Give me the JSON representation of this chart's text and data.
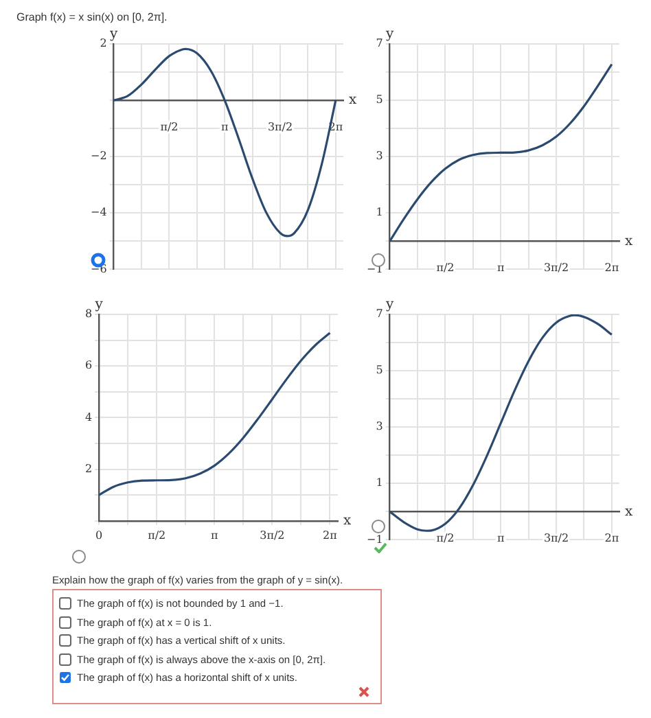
{
  "chart_data": [
    {
      "type": "line",
      "title": "Graph f(x) = x sin(x) on [0, 2π].",
      "xlabel": "x",
      "ylabel": "y",
      "xlim": [
        0,
        6.5
      ],
      "ylim": [
        -6,
        2
      ],
      "xticks": [
        {
          "value": 0.785,
          "label": null
        },
        {
          "value": 1.571,
          "label": "π/2"
        },
        {
          "value": 2.356,
          "label": null
        },
        {
          "value": 3.142,
          "label": "π"
        },
        {
          "value": 3.927,
          "label": null
        },
        {
          "value": 4.712,
          "label": "3π/2"
        },
        {
          "value": 5.498,
          "label": null
        },
        {
          "value": 6.283,
          "label": "2π"
        }
      ],
      "yticks": [
        -6,
        {
          "value": -5,
          "label": null
        },
        -4,
        {
          "value": -3,
          "label": null
        },
        -2,
        {
          "value": -1,
          "label": null
        },
        {
          "value": 0,
          "label": null
        },
        {
          "value": 1,
          "label": null
        },
        2
      ],
      "grid": true,
      "legend": false,
      "marker": "none",
      "series": [
        {
          "color": "#2b4a6f",
          "x": [
            0,
            0.393,
            0.785,
            1.178,
            1.571,
            1.963,
            2.03,
            2.356,
            2.749,
            3.142,
            3.534,
            3.927,
            4.32,
            4.712,
            4.91,
            5.105,
            5.498,
            5.89,
            6.283
          ],
          "values": [
            0,
            0.15,
            0.56,
            1.09,
            1.57,
            1.81,
            1.82,
            1.67,
            1.05,
            0,
            -1.35,
            -2.78,
            -3.99,
            -4.71,
            -4.82,
            -4.72,
            -3.89,
            -2.26,
            0
          ]
        }
      ],
      "annotations": [
        "Explain how the graph of f(x) varies from the graph of  y = sin(x).",
        "The graph of f(x) is not bounded by 1 and −1.",
        "The graph of f(x) at x = 0 is 1.",
        "The graph of f(x) has a vertical shift of x units.",
        "The graph of f(x) is always above the x-axis on [0, 2π].",
        "The graph of f(x) has a horizontal shift of x units."
      ]
    },
    {
      "type": "line",
      "xlabel": "x",
      "ylabel": "y",
      "xlim": [
        0,
        6.5
      ],
      "ylim": [
        -1,
        7
      ],
      "xticks": [
        {
          "value": 0.785,
          "label": null
        },
        {
          "value": 1.571,
          "label": "π/2"
        },
        {
          "value": 2.356,
          "label": null
        },
        {
          "value": 3.142,
          "label": "π"
        },
        {
          "value": 3.927,
          "label": null
        },
        {
          "value": 4.712,
          "label": "3π/2"
        },
        {
          "value": 5.498,
          "label": null
        },
        {
          "value": 6.283,
          "label": "2π"
        }
      ],
      "yticks": [
        -1,
        {
          "value": 0,
          "label": null
        },
        1,
        {
          "value": 2,
          "label": null
        },
        3,
        {
          "value": 4,
          "label": null
        },
        5,
        {
          "value": 6,
          "label": null
        },
        7
      ],
      "grid": true,
      "legend": false,
      "marker": "none",
      "series": [
        {
          "color": "#2b4a6f",
          "x": [
            0,
            0.393,
            0.785,
            1.178,
            1.571,
            1.963,
            2.356,
            2.749,
            3.142,
            3.534,
            3.927,
            4.32,
            4.712,
            5.105,
            5.498,
            5.89,
            6.283
          ],
          "values": [
            0,
            0.78,
            1.49,
            2.1,
            2.57,
            2.89,
            3.06,
            3.13,
            3.14,
            3.15,
            3.22,
            3.4,
            3.71,
            4.18,
            4.79,
            5.51,
            6.28
          ]
        }
      ]
    },
    {
      "type": "line",
      "xlabel": "x",
      "ylabel": "y",
      "xlim": [
        0,
        6.5
      ],
      "ylim": [
        0,
        8
      ],
      "xticks": [
        0,
        {
          "value": 0.785,
          "label": null
        },
        {
          "value": 1.571,
          "label": "π/2"
        },
        {
          "value": 2.356,
          "label": null
        },
        {
          "value": 3.142,
          "label": "π"
        },
        {
          "value": 3.927,
          "label": null
        },
        {
          "value": 4.712,
          "label": "3π/2"
        },
        {
          "value": 5.498,
          "label": null
        },
        {
          "value": 6.283,
          "label": "2π"
        }
      ],
      "yticks": [
        {
          "value": 0,
          "label": null
        },
        {
          "value": 1,
          "label": null
        },
        2,
        {
          "value": 3,
          "label": null
        },
        4,
        {
          "value": 5,
          "label": null
        },
        6,
        {
          "value": 7,
          "label": null
        },
        8
      ],
      "grid": true,
      "legend": false,
      "marker": "none",
      "series": [
        {
          "color": "#2b4a6f",
          "x": [
            0,
            0.393,
            0.785,
            1.178,
            1.571,
            1.963,
            2.356,
            2.749,
            3.142,
            3.534,
            3.927,
            4.32,
            4.712,
            5.105,
            5.498,
            5.89,
            6.283
          ],
          "values": [
            1,
            1.32,
            1.49,
            1.56,
            1.57,
            1.58,
            1.65,
            1.83,
            2.14,
            2.61,
            3.22,
            3.94,
            4.71,
            5.49,
            6.21,
            6.81,
            7.28
          ]
        }
      ]
    },
    {
      "type": "line",
      "xlabel": "x",
      "ylabel": "y",
      "xlim": [
        0,
        6.5
      ],
      "ylim": [
        -1,
        7
      ],
      "xticks": [
        {
          "value": 0.785,
          "label": null
        },
        {
          "value": 1.571,
          "label": "π/2"
        },
        {
          "value": 2.356,
          "label": null
        },
        {
          "value": 3.142,
          "label": "π"
        },
        {
          "value": 3.927,
          "label": null
        },
        {
          "value": 4.712,
          "label": "3π/2"
        },
        {
          "value": 5.498,
          "label": null
        },
        {
          "value": 6.283,
          "label": "2π"
        }
      ],
      "yticks": [
        -1,
        {
          "value": 0,
          "label": null
        },
        1,
        {
          "value": 2,
          "label": null
        },
        3,
        {
          "value": 4,
          "label": null
        },
        5,
        {
          "value": 6,
          "label": null
        },
        7
      ],
      "grid": true,
      "legend": false,
      "marker": "none",
      "series": [
        {
          "color": "#2b4a6f",
          "x": [
            0,
            0.393,
            0.785,
            1.047,
            1.178,
            1.571,
            1.963,
            2.356,
            2.749,
            3.142,
            3.534,
            3.927,
            4.32,
            4.712,
            5.105,
            5.236,
            5.498,
            5.89,
            6.283
          ],
          "values": [
            0,
            -0.37,
            -0.63,
            -0.68,
            -0.67,
            -0.43,
            0.11,
            0.94,
            1.98,
            3.14,
            4.3,
            5.34,
            6.17,
            6.71,
            6.95,
            6.97,
            6.91,
            6.66,
            6.28
          ]
        }
      ]
    }
  ]
}
